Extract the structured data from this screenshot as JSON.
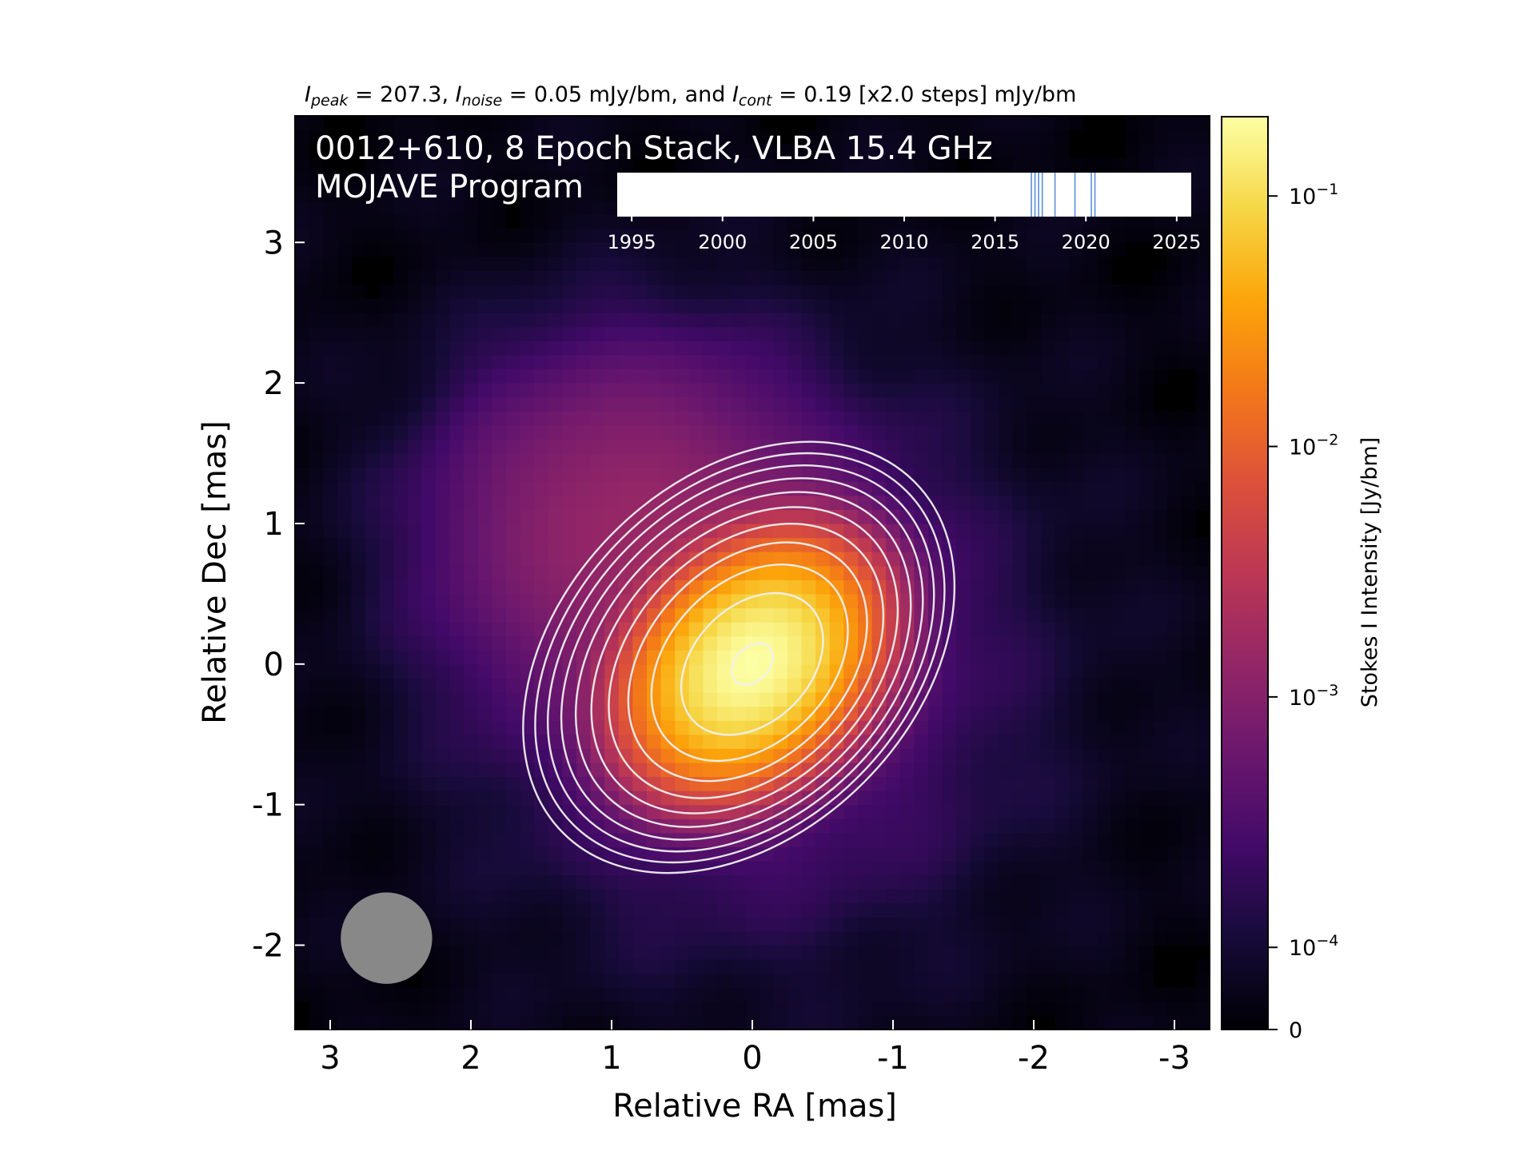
{
  "chart_data": {
    "type": "heatmap",
    "header": {
      "peak_value": "207.3",
      "noise_value": "0.05",
      "cont_value": "0.19",
      "text_mid1": " = ",
      "text_mid2": ", ",
      "text_mid3": " = ",
      "text_and": " mJy/bm, and ",
      "text_mid4": " = ",
      "text_end": " [x2.0 steps] mJy/bm",
      "sym_I": "I",
      "sub_peak": "peak",
      "sub_noise": "noise",
      "sub_cont": "cont"
    },
    "title_line1": "0012+610, 8 Epoch Stack, VLBA 15.4 GHz",
    "title_line2": "MOJAVE Program",
    "xlabel": "Relative RA [mas]",
    "ylabel": "Relative Dec [mas]",
    "xlim": [
      3.25,
      -3.25
    ],
    "ylim": [
      -2.6,
      3.9
    ],
    "x_ticks": [
      "3",
      "2",
      "1",
      "0",
      "-1",
      "-2",
      "-3"
    ],
    "x_tick_values": [
      3,
      2,
      1,
      0,
      -1,
      -2,
      -3
    ],
    "y_ticks": [
      "3",
      "2",
      "1",
      "0",
      "-1",
      "-2"
    ],
    "y_tick_values": [
      3,
      2,
      1,
      0,
      -1,
      -2
    ],
    "colorbar": {
      "label": "Stokes I Intensity [Jy/bm]",
      "scale": "symlog",
      "ticks": [
        {
          "value": 0.1,
          "mantissa": "10",
          "exp": "−1"
        },
        {
          "value": 0.01,
          "mantissa": "10",
          "exp": "−2"
        },
        {
          "value": 0.001,
          "mantissa": "10",
          "exp": "−3"
        },
        {
          "value": 0.0001,
          "mantissa": "10",
          "exp": "−4"
        },
        {
          "value": 0,
          "mantissa": "0",
          "exp": ""
        }
      ],
      "colormap": "inferno"
    },
    "peak_Jy": 0.2073,
    "contour_base_mJy": 0.19,
    "contour_step": 2.0,
    "source": {
      "x": 0.0,
      "y": 0.0,
      "sigma_major_mas": 0.4,
      "sigma_minor_mas": 0.3,
      "major_axis_pa_deg": 135
    },
    "beam": {
      "ra": 2.6,
      "dec": -1.95,
      "diameter_mas": 0.65,
      "color": "#888888"
    },
    "epoch_timeline": {
      "ticks": [
        "1995",
        "2000",
        "2005",
        "2010",
        "2015",
        "2020",
        "2025"
      ],
      "tick_values": [
        1995,
        2000,
        2005,
        2010,
        2015,
        2020,
        2025
      ],
      "range": [
        1994.2,
        2025.8
      ],
      "epochs": [
        2017.0,
        2017.2,
        2017.4,
        2017.6,
        2018.3,
        2019.4,
        2020.3,
        2020.5
      ],
      "epoch_color": "#5b8fd6"
    },
    "colors": {
      "background": "#000000",
      "contour": "#f0f0f0"
    }
  }
}
